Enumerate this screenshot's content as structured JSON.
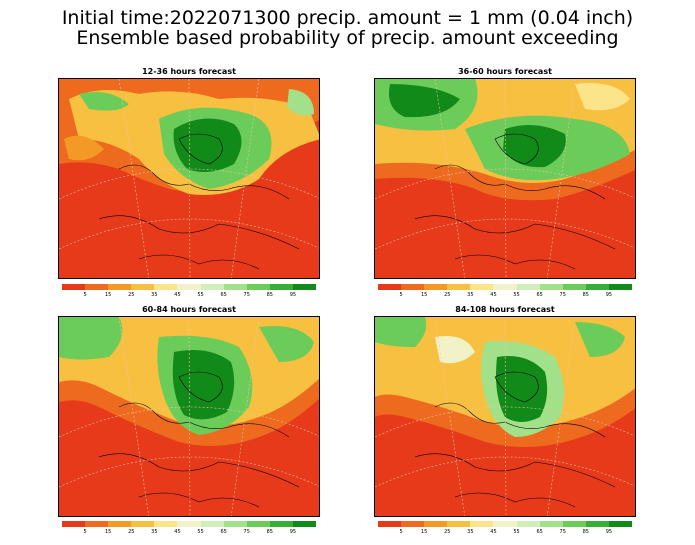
{
  "header": {
    "line1": "Initial time:2022071300 precip. amount = 1 mm (0.04 inch)",
    "line2": "Ensemble based probability of precip. amount exceeding"
  },
  "panels": [
    {
      "title": "12-36 hours forecast"
    },
    {
      "title": "36-60 hours forecast"
    },
    {
      "title": "60-84 hours forecast"
    },
    {
      "title": "84-108 hours forecast"
    }
  ],
  "colorbar": {
    "colors": [
      "#e63a1a",
      "#ee6a1e",
      "#f39a26",
      "#f7c040",
      "#fbe48a",
      "#f2f2c8",
      "#cfeeb8",
      "#a2e08a",
      "#6ccc5a",
      "#38ad38",
      "#118a1a"
    ],
    "labels": [
      "5",
      "15",
      "25",
      "35",
      "45",
      "55",
      "65",
      "75",
      "85",
      "95"
    ]
  }
}
